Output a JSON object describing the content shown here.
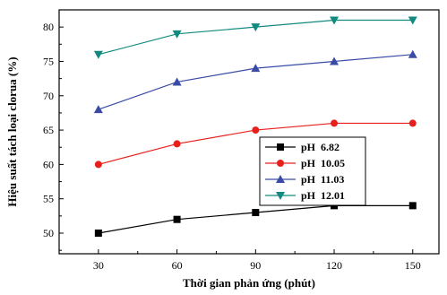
{
  "chart_data": {
    "type": "line",
    "title": "",
    "xlabel": "Thời gian phản ứng (phút)",
    "ylabel": "Hiệu suất tách loại clorua (%)",
    "x": [
      30,
      60,
      90,
      120,
      150
    ],
    "xlim": [
      15,
      160
    ],
    "ylim": [
      47,
      82.5
    ],
    "xticks": [
      30,
      60,
      90,
      120,
      150
    ],
    "yticks": [
      50,
      55,
      60,
      65,
      70,
      75,
      80
    ],
    "grid": false,
    "legend_position": "center-right",
    "series": [
      {
        "name": "pH  6.82",
        "color": "#000000",
        "marker": "square",
        "values": [
          50,
          52,
          53,
          54,
          54
        ]
      },
      {
        "name": "pH  10.05",
        "color": "#e8201c",
        "marker": "circle",
        "values": [
          60,
          63,
          65,
          66,
          66
        ]
      },
      {
        "name": "pH  11.03",
        "color": "#3a4ba6",
        "marker": "triangle-up",
        "values": [
          68,
          72,
          74,
          75,
          76
        ]
      },
      {
        "name": "pH  12.01",
        "color": "#138a80",
        "marker": "triangle-down",
        "values": [
          76,
          79,
          80,
          81,
          81
        ]
      }
    ]
  }
}
